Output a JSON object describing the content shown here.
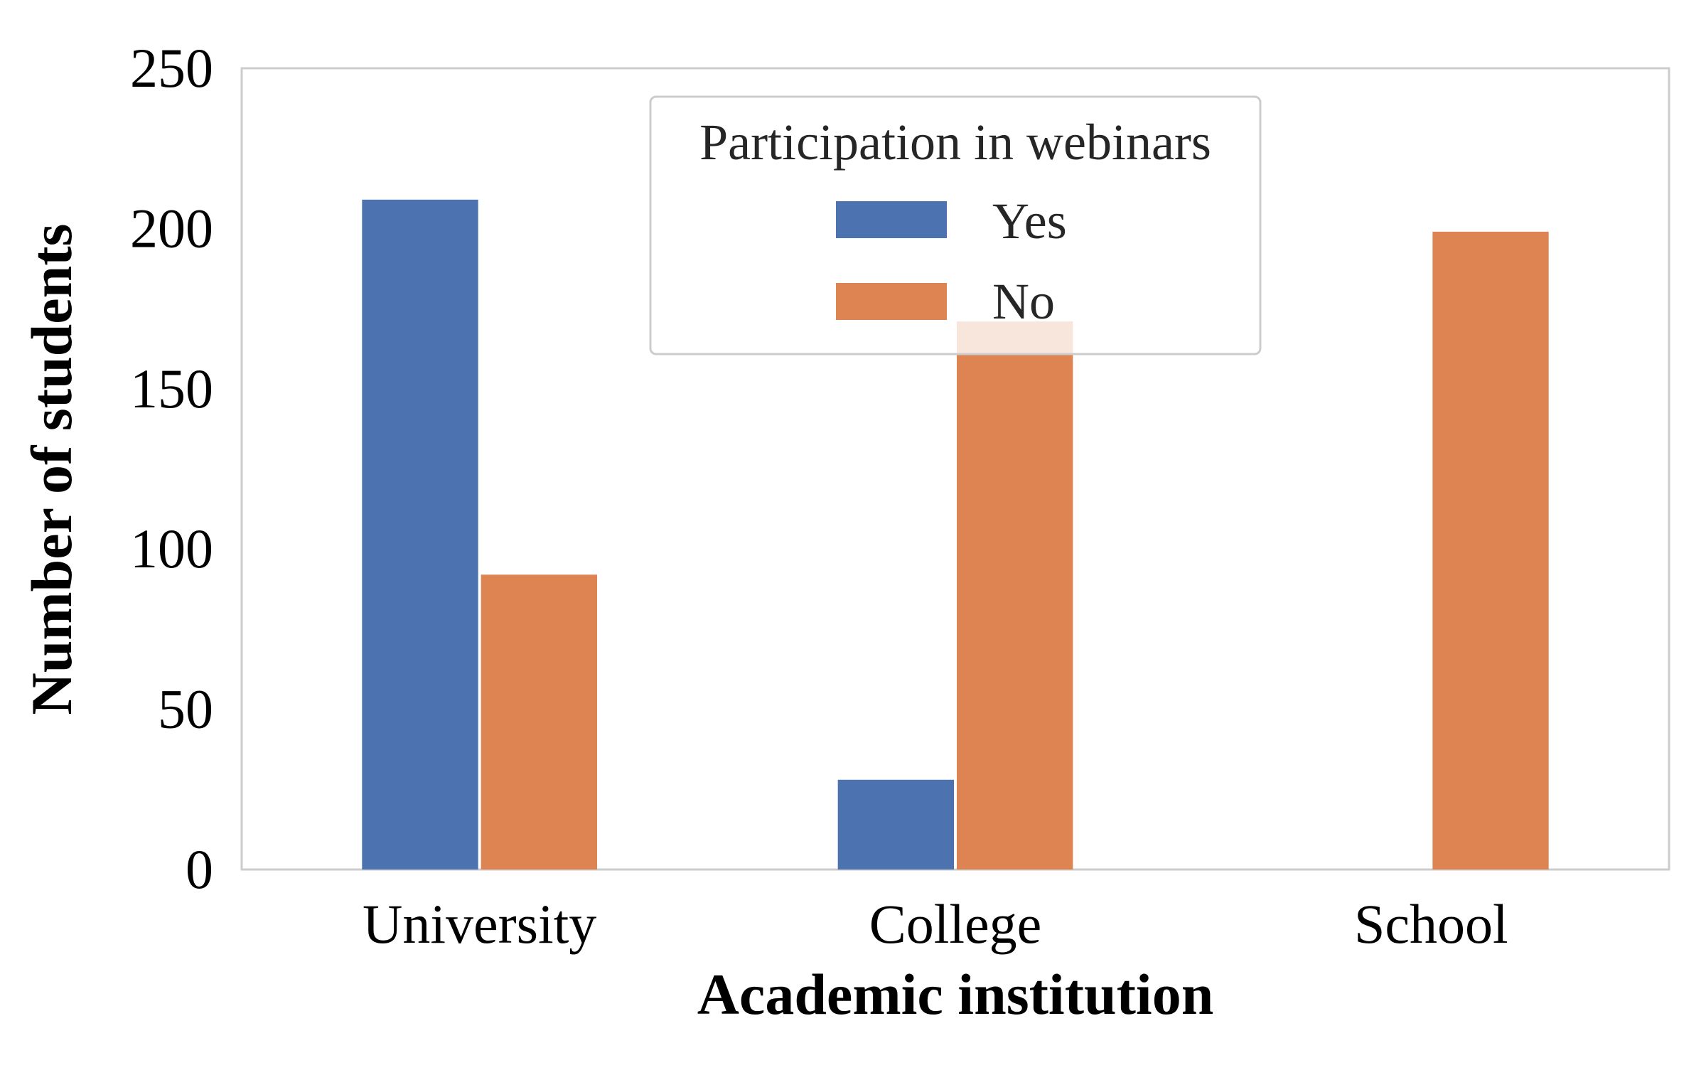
{
  "chart_data": {
    "type": "bar",
    "xlabel": "Academic institution",
    "ylabel": "Number of students",
    "categories": [
      "University",
      "College",
      "School"
    ],
    "series": [
      {
        "name": "Yes",
        "values": [
          209,
          28,
          0
        ],
        "color": "#4c72b0"
      },
      {
        "name": "No",
        "values": [
          92,
          171,
          199
        ],
        "color": "#dd8452"
      }
    ],
    "ylim": [
      0,
      250
    ],
    "yticks": [
      "0",
      "50",
      "100",
      "150",
      "200",
      "250"
    ],
    "legend": {
      "title": "Participation in webinars",
      "placement": "top-center"
    },
    "grid": false
  }
}
